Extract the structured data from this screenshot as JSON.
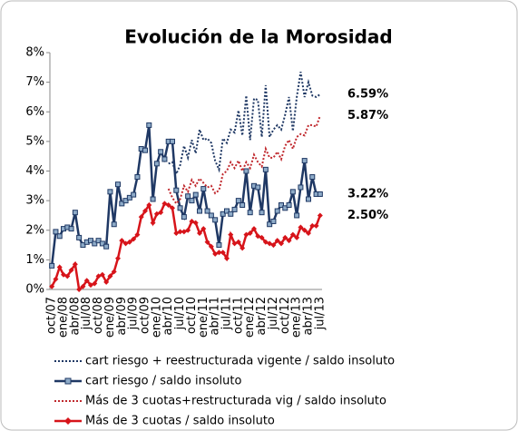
{
  "chart_data": {
    "type": "line",
    "title": "Evolución de la Morosidad",
    "categories": [
      "oct/07",
      null,
      null,
      "ene/08",
      null,
      null,
      "abr/08",
      null,
      null,
      "jul/08",
      null,
      null,
      "oct/08",
      null,
      null,
      "ene/09",
      null,
      null,
      "abr/09",
      null,
      null,
      "jul/09",
      null,
      null,
      "oct/09",
      null,
      null,
      "ene/10",
      null,
      null,
      "abr/10",
      null,
      null,
      "jul/10",
      null,
      null,
      "oct/10",
      null,
      null,
      "ene/11",
      null,
      null,
      "abr/11",
      null,
      null,
      "jul/11",
      null,
      null,
      "oct/11",
      null,
      null,
      "ene/12",
      null,
      null,
      "abr/12",
      null,
      null,
      "jul/12",
      null,
      null,
      "oct/12",
      null,
      null,
      "ene/13",
      null,
      null,
      "abr/13",
      null,
      null,
      "jul/13"
    ],
    "ylim": [
      0,
      8
    ],
    "yticks": [
      {
        "value": 0,
        "label": "0%"
      },
      {
        "value": 1,
        "label": "1%"
      },
      {
        "value": 2,
        "label": "2%"
      },
      {
        "value": 3,
        "label": "3%"
      },
      {
        "value": 4,
        "label": "4%"
      },
      {
        "value": 5,
        "label": "5%"
      },
      {
        "value": 6,
        "label": "6%"
      },
      {
        "value": 7,
        "label": "7%"
      },
      {
        "value": 8,
        "label": "8%"
      }
    ],
    "series": [
      {
        "name": "cart riesgo + reestructurada vigente / saldo insoluto",
        "color": "#1f3864",
        "style": "dotted",
        "marker": null,
        "values": [
          null,
          null,
          null,
          null,
          null,
          null,
          null,
          null,
          null,
          null,
          null,
          null,
          null,
          null,
          null,
          null,
          null,
          null,
          null,
          null,
          null,
          null,
          null,
          null,
          null,
          null,
          null,
          null,
          null,
          null,
          4.25,
          4.3,
          3.9,
          4.2,
          4.85,
          4.45,
          5.05,
          4.6,
          5.4,
          5.05,
          5.1,
          4.95,
          4.35,
          4.05,
          5.1,
          4.95,
          5.4,
          5.3,
          6.05,
          5.2,
          6.55,
          5.05,
          6.45,
          6.4,
          5.15,
          6.9,
          5.15,
          5.4,
          5.55,
          5.4,
          5.9,
          6.5,
          5.35,
          6.5,
          7.35,
          6.5,
          7.0,
          6.55,
          6.5,
          6.59
        ],
        "value_labels": [
          null,
          null,
          null,
          null,
          null,
          null,
          null,
          null,
          null,
          null,
          null,
          null,
          null,
          null,
          null,
          null,
          null,
          null,
          null,
          null,
          null,
          null,
          null,
          null,
          null,
          null,
          null,
          null,
          null,
          null,
          null,
          null,
          null,
          null,
          null,
          null,
          null,
          null,
          null,
          null,
          null,
          null,
          null,
          null,
          null,
          null,
          null,
          null,
          null,
          null,
          null,
          null,
          null,
          null,
          null,
          null,
          null,
          null,
          null,
          null,
          null,
          null,
          null,
          null,
          null,
          null,
          null,
          null,
          null,
          "6.59%"
        ]
      },
      {
        "name": "cart riesgo / saldo insoluto",
        "color": "#1f3864",
        "style": "solid",
        "marker": "square",
        "values": [
          0.8,
          1.95,
          1.8,
          2.05,
          2.1,
          2.05,
          2.6,
          1.75,
          1.5,
          1.6,
          1.65,
          1.55,
          1.65,
          1.55,
          1.45,
          3.3,
          2.2,
          3.55,
          2.9,
          3.0,
          3.1,
          3.2,
          3.8,
          4.75,
          4.7,
          5.55,
          3.05,
          4.25,
          4.65,
          4.4,
          5.0,
          5.0,
          3.35,
          2.75,
          2.45,
          3.15,
          3.0,
          3.2,
          2.65,
          3.4,
          2.65,
          2.5,
          2.35,
          1.5,
          2.55,
          2.65,
          2.55,
          2.7,
          3.0,
          2.85,
          4.0,
          2.6,
          3.5,
          3.45,
          2.6,
          4.05,
          2.2,
          2.3,
          2.65,
          2.85,
          2.75,
          2.85,
          3.3,
          2.5,
          3.45,
          4.35,
          3.05,
          3.8,
          3.22,
          3.22
        ],
        "value_labels": [
          null,
          null,
          null,
          null,
          null,
          null,
          null,
          null,
          null,
          null,
          null,
          null,
          null,
          null,
          null,
          null,
          null,
          null,
          null,
          null,
          null,
          null,
          null,
          null,
          null,
          null,
          null,
          null,
          null,
          null,
          null,
          null,
          null,
          null,
          null,
          null,
          null,
          null,
          null,
          null,
          null,
          null,
          null,
          null,
          null,
          null,
          null,
          null,
          null,
          null,
          null,
          null,
          null,
          null,
          null,
          null,
          null,
          null,
          null,
          null,
          null,
          null,
          null,
          null,
          null,
          null,
          null,
          null,
          null,
          "3.22%"
        ]
      },
      {
        "name": "Más de 3 cuotas+restructurada vig / saldo insoluto",
        "color": "#c0282d",
        "style": "dotted",
        "marker": null,
        "values": [
          null,
          null,
          null,
          null,
          null,
          null,
          null,
          null,
          null,
          null,
          null,
          null,
          null,
          null,
          null,
          null,
          null,
          null,
          null,
          null,
          null,
          null,
          null,
          null,
          null,
          null,
          null,
          null,
          null,
          null,
          3.4,
          3.1,
          2.9,
          3.05,
          3.5,
          3.3,
          3.7,
          3.5,
          3.75,
          3.6,
          3.45,
          3.5,
          3.25,
          3.35,
          3.9,
          4.0,
          4.3,
          4.1,
          4.35,
          4.0,
          4.3,
          4.1,
          4.55,
          4.3,
          4.15,
          4.75,
          4.45,
          4.45,
          4.65,
          4.4,
          4.85,
          5.05,
          4.75,
          5.15,
          5.25,
          5.2,
          5.55,
          5.55,
          5.5,
          5.87
        ],
        "value_labels": [
          null,
          null,
          null,
          null,
          null,
          null,
          null,
          null,
          null,
          null,
          null,
          null,
          null,
          null,
          null,
          null,
          null,
          null,
          null,
          null,
          null,
          null,
          null,
          null,
          null,
          null,
          null,
          null,
          null,
          null,
          null,
          null,
          null,
          null,
          null,
          null,
          null,
          null,
          null,
          null,
          null,
          null,
          null,
          null,
          null,
          null,
          null,
          null,
          null,
          null,
          null,
          null,
          null,
          null,
          null,
          null,
          null,
          null,
          null,
          null,
          null,
          null,
          null,
          null,
          null,
          null,
          null,
          null,
          null,
          "5.87%"
        ]
      },
      {
        "name": "Más de 3 cuotas / saldo insoluto",
        "color": "#d7141a",
        "style": "solid",
        "marker": "diamond",
        "values": [
          0.1,
          0.35,
          0.75,
          0.5,
          0.45,
          0.65,
          0.85,
          0.0,
          0.1,
          0.3,
          0.15,
          0.2,
          0.45,
          0.5,
          0.25,
          0.45,
          0.6,
          1.05,
          1.65,
          1.55,
          1.6,
          1.7,
          1.85,
          2.45,
          2.65,
          2.85,
          2.25,
          2.55,
          2.6,
          2.9,
          2.85,
          2.75,
          1.9,
          1.95,
          1.95,
          2.0,
          2.3,
          2.25,
          1.9,
          2.05,
          1.6,
          1.45,
          1.2,
          1.25,
          1.25,
          1.05,
          1.85,
          1.55,
          1.6,
          1.4,
          1.85,
          1.9,
          2.05,
          1.8,
          1.75,
          1.6,
          1.55,
          1.5,
          1.65,
          1.55,
          1.75,
          1.65,
          1.85,
          1.75,
          2.1,
          2.0,
          1.9,
          2.15,
          2.15,
          2.5
        ],
        "value_labels": [
          null,
          null,
          null,
          null,
          null,
          null,
          null,
          null,
          null,
          null,
          null,
          null,
          null,
          null,
          null,
          null,
          null,
          null,
          null,
          null,
          null,
          null,
          null,
          null,
          null,
          null,
          null,
          null,
          null,
          null,
          null,
          null,
          null,
          null,
          null,
          null,
          null,
          null,
          null,
          null,
          null,
          null,
          null,
          null,
          null,
          null,
          null,
          null,
          null,
          null,
          null,
          null,
          null,
          null,
          null,
          null,
          null,
          null,
          null,
          null,
          null,
          null,
          null,
          null,
          null,
          null,
          null,
          null,
          null,
          "2.50%"
        ]
      }
    ]
  }
}
